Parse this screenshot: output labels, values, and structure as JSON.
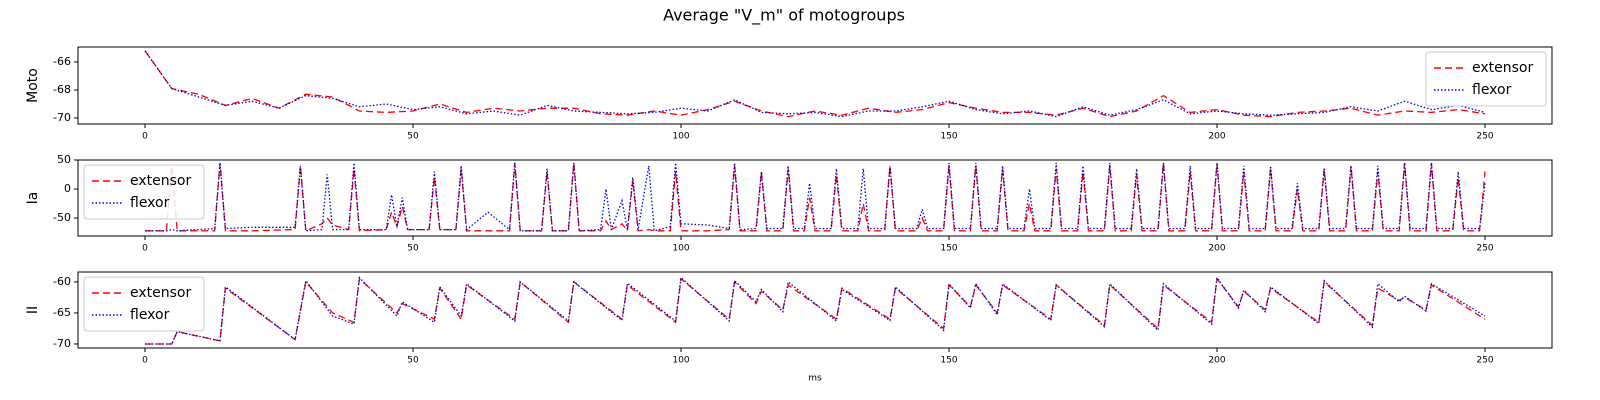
{
  "title": "Average \"V_m\" of motogroups",
  "chart_data": [
    {
      "type": "line",
      "ylabel": "Moto",
      "legend": "upper right",
      "xlim": [
        -12.5,
        262.5
      ],
      "ylim": [
        -70.43,
        -64.93
      ],
      "xticks": [
        0,
        50,
        100,
        150,
        200,
        250
      ],
      "yticks": [
        -70,
        -68,
        -66
      ],
      "x": [
        0,
        5,
        10,
        15,
        20,
        25,
        30,
        35,
        40,
        45,
        50,
        55,
        60,
        65,
        70,
        75,
        80,
        85,
        90,
        95,
        100,
        105,
        110,
        115,
        120,
        125,
        130,
        135,
        140,
        145,
        150,
        155,
        160,
        165,
        170,
        175,
        180,
        185,
        190,
        195,
        200,
        205,
        210,
        215,
        220,
        225,
        230,
        235,
        240,
        245,
        250
      ],
      "series": [
        {
          "name": "extensor",
          "color": "#ff0000",
          "linestyle": "dashed",
          "values": [
            -65.2,
            -67.9,
            -68.3,
            -69.1,
            -68.6,
            -69.3,
            -68.3,
            -68.5,
            -69.5,
            -69.6,
            -69.5,
            -69.0,
            -69.6,
            -69.3,
            -69.5,
            -69.3,
            -69.3,
            -69.7,
            -69.8,
            -69.5,
            -69.8,
            -69.4,
            -68.8,
            -69.5,
            -69.9,
            -69.5,
            -69.8,
            -69.3,
            -69.6,
            -69.4,
            -68.9,
            -69.3,
            -69.6,
            -69.6,
            -69.8,
            -69.3,
            -69.9,
            -69.5,
            -68.4,
            -69.6,
            -69.4,
            -69.8,
            -69.9,
            -69.6,
            -69.5,
            -69.3,
            -69.8,
            -69.5,
            -69.6,
            -69.4,
            -69.7
          ]
        },
        {
          "name": "flexor",
          "color": "#0000cc",
          "linestyle": "dotted",
          "values": [
            -65.2,
            -67.9,
            -68.5,
            -69.1,
            -68.8,
            -69.3,
            -68.4,
            -68.6,
            -69.2,
            -69.0,
            -69.4,
            -69.2,
            -69.7,
            -69.5,
            -69.8,
            -69.1,
            -69.5,
            -69.6,
            -69.7,
            -69.6,
            -69.3,
            -69.5,
            -68.7,
            -69.6,
            -69.7,
            -69.6,
            -69.9,
            -69.5,
            -69.5,
            -69.2,
            -68.8,
            -69.4,
            -69.7,
            -69.5,
            -69.9,
            -69.2,
            -69.8,
            -69.4,
            -68.7,
            -69.7,
            -69.5,
            -69.7,
            -69.8,
            -69.7,
            -69.6,
            -69.2,
            -69.5,
            -68.8,
            -69.4,
            -69.1,
            -69.6
          ]
        }
      ]
    },
    {
      "type": "line",
      "ylabel": "Ia",
      "legend": "upper left",
      "xlim": [
        -12.5,
        262.5
      ],
      "ylim": [
        -81,
        50
      ],
      "xticks": [
        0,
        50,
        100,
        150,
        200,
        250
      ],
      "yticks": [
        -50,
        0,
        50
      ],
      "x": [
        0,
        4,
        5,
        6,
        13,
        14,
        15,
        20,
        28,
        29,
        30,
        33,
        34,
        35,
        38,
        39,
        40,
        45,
        46,
        47,
        48,
        49,
        53,
        54,
        55,
        58,
        59,
        60,
        64,
        68,
        69,
        70,
        74,
        75,
        76,
        79,
        80,
        81,
        85,
        86,
        87,
        89,
        90,
        91,
        92,
        94,
        95,
        98,
        99,
        100,
        105,
        109,
        110,
        111,
        114,
        115,
        116,
        119,
        120,
        121,
        123,
        124,
        125,
        128,
        129,
        130,
        133,
        134,
        135,
        138,
        139,
        140,
        144,
        145,
        146,
        149,
        150,
        151,
        154,
        155,
        156,
        159,
        160,
        161,
        164,
        165,
        166,
        169,
        170,
        171,
        174,
        175,
        176,
        179,
        180,
        181,
        184,
        185,
        186,
        189,
        190,
        191,
        194,
        195,
        196,
        199,
        200,
        201,
        204,
        205,
        206,
        209,
        210,
        211,
        214,
        215,
        216,
        219,
        220,
        221,
        224,
        225,
        226,
        229,
        230,
        231,
        234,
        235,
        236,
        239,
        240,
        241,
        244,
        245,
        246,
        249,
        250
      ],
      "series": [
        {
          "name": "extensor",
          "color": "#ff0000",
          "linestyle": "dashed",
          "values": [
            -72,
            -72,
            40,
            -72,
            -72,
            45,
            -72,
            -72,
            -70,
            40,
            -72,
            -60,
            -50,
            -62,
            -70,
            35,
            -72,
            -70,
            -40,
            -65,
            -30,
            -70,
            -70,
            20,
            -70,
            -70,
            35,
            -72,
            -72,
            -72,
            45,
            -72,
            -72,
            30,
            -72,
            -72,
            45,
            -72,
            -72,
            -55,
            -70,
            -60,
            -72,
            15,
            -72,
            -70,
            -72,
            -72,
            30,
            -72,
            -72,
            -70,
            40,
            -72,
            -72,
            30,
            -72,
            -72,
            35,
            -72,
            -72,
            -15,
            -72,
            -72,
            25,
            -72,
            -72,
            -25,
            -72,
            -72,
            40,
            -72,
            -72,
            -50,
            -72,
            -72,
            40,
            -72,
            -72,
            40,
            -72,
            -72,
            35,
            -72,
            -72,
            -25,
            -72,
            -72,
            35,
            -72,
            -72,
            30,
            -72,
            -72,
            40,
            -72,
            -72,
            25,
            -72,
            -72,
            45,
            -72,
            -72,
            30,
            -72,
            -72,
            45,
            -72,
            -72,
            30,
            -72,
            -72,
            35,
            -72,
            -72,
            0,
            -72,
            -72,
            35,
            -72,
            -72,
            40,
            -72,
            -72,
            30,
            -72,
            -72,
            45,
            -72,
            -72,
            45,
            -72,
            -72,
            20,
            -72,
            -72,
            30
          ]
        },
        {
          "name": "flexor",
          "color": "#0000cc",
          "linestyle": "dotted",
          "values": [
            -72,
            -72,
            -70,
            -72,
            -68,
            45,
            -68,
            -66,
            -66,
            40,
            -72,
            -70,
            25,
            -70,
            -70,
            45,
            -70,
            -70,
            -10,
            -65,
            -15,
            -70,
            -70,
            30,
            -70,
            -70,
            40,
            -70,
            -40,
            -70,
            45,
            -72,
            -72,
            35,
            -72,
            -72,
            45,
            -72,
            -70,
            0,
            -70,
            -20,
            -70,
            20,
            -70,
            40,
            -72,
            -65,
            45,
            -60,
            -62,
            -68,
            45,
            -70,
            -68,
            30,
            -68,
            -68,
            40,
            -68,
            -68,
            10,
            -68,
            -68,
            35,
            -68,
            -68,
            35,
            -68,
            -68,
            40,
            -68,
            -68,
            -35,
            -68,
            -68,
            45,
            -68,
            -68,
            45,
            -68,
            -68,
            40,
            -68,
            -68,
            0,
            -68,
            -68,
            45,
            -68,
            -68,
            40,
            -68,
            -68,
            45,
            -68,
            -68,
            35,
            -68,
            -68,
            45,
            -68,
            -68,
            40,
            -68,
            -68,
            45,
            -68,
            -68,
            40,
            -68,
            -68,
            40,
            -68,
            -68,
            10,
            -68,
            -68,
            35,
            -68,
            -68,
            40,
            -68,
            -68,
            40,
            -68,
            -68,
            45,
            -68,
            -68,
            45,
            -68,
            -68,
            30,
            -68,
            -68,
            10
          ]
        }
      ]
    },
    {
      "type": "line",
      "ylabel": "II",
      "xlabel": "ms",
      "legend": "upper left",
      "xlim": [
        -12.5,
        262.5
      ],
      "ylim": [
        -70.65,
        -58.4
      ],
      "xticks": [
        0,
        50,
        100,
        150,
        200,
        250
      ],
      "yticks": [
        -70,
        -65,
        -60
      ],
      "x": [
        0,
        5,
        6,
        14,
        15,
        28,
        30,
        35,
        39,
        40,
        47,
        48,
        54,
        55,
        59,
        60,
        69,
        70,
        79,
        80,
        89,
        90,
        99,
        100,
        109,
        110,
        114,
        115,
        119,
        120,
        129,
        130,
        139,
        140,
        149,
        150,
        154,
        155,
        159,
        160,
        169,
        170,
        179,
        180,
        189,
        190,
        199,
        200,
        204,
        205,
        209,
        210,
        219,
        220,
        229,
        230,
        234,
        235,
        239,
        240,
        250
      ],
      "series": [
        {
          "name": "extensor",
          "color": "#ff0000",
          "linestyle": "dashed",
          "values": [
            -70,
            -70,
            -68,
            -69.5,
            -61,
            -69.3,
            -60,
            -65,
            -66.5,
            -59.5,
            -65,
            -63.5,
            -66,
            -61,
            -66,
            -60.5,
            -66,
            -60,
            -66.5,
            -60,
            -66,
            -60.5,
            -66.5,
            -59.5,
            -66,
            -60,
            -63.5,
            -61.5,
            -64.5,
            -60.5,
            -66,
            -61,
            -66,
            -61,
            -67.5,
            -60.5,
            -64,
            -60.5,
            -65,
            -60.5,
            -66,
            -60.5,
            -67,
            -60.5,
            -67.5,
            -60.5,
            -66.5,
            -59.5,
            -64,
            -61.5,
            -64.5,
            -61,
            -66.5,
            -60,
            -67,
            -61,
            -63,
            -62.5,
            -64.5,
            -60.5,
            -66
          ]
        },
        {
          "name": "flexor",
          "color": "#0000cc",
          "linestyle": "dotted",
          "values": [
            -70,
            -70,
            -68,
            -69.5,
            -60.8,
            -69.3,
            -59.8,
            -65.5,
            -66.8,
            -59.3,
            -65.5,
            -63.2,
            -66.5,
            -60.8,
            -65.5,
            -60.3,
            -66.3,
            -60,
            -66.3,
            -60,
            -66.2,
            -60.2,
            -66.3,
            -59.3,
            -66.3,
            -59.8,
            -63.2,
            -61.2,
            -64.8,
            -60,
            -66.3,
            -61.2,
            -66.2,
            -60.8,
            -67.8,
            -60.3,
            -64.2,
            -60.3,
            -65.3,
            -60.3,
            -66.2,
            -60.5,
            -67.2,
            -60.3,
            -67.8,
            -60.3,
            -66.8,
            -59.3,
            -64.2,
            -61.3,
            -64.8,
            -60.8,
            -66.7,
            -59.8,
            -67.3,
            -60.3,
            -63.2,
            -62.3,
            -64.7,
            -60.3,
            -65.5
          ]
        }
      ]
    }
  ]
}
